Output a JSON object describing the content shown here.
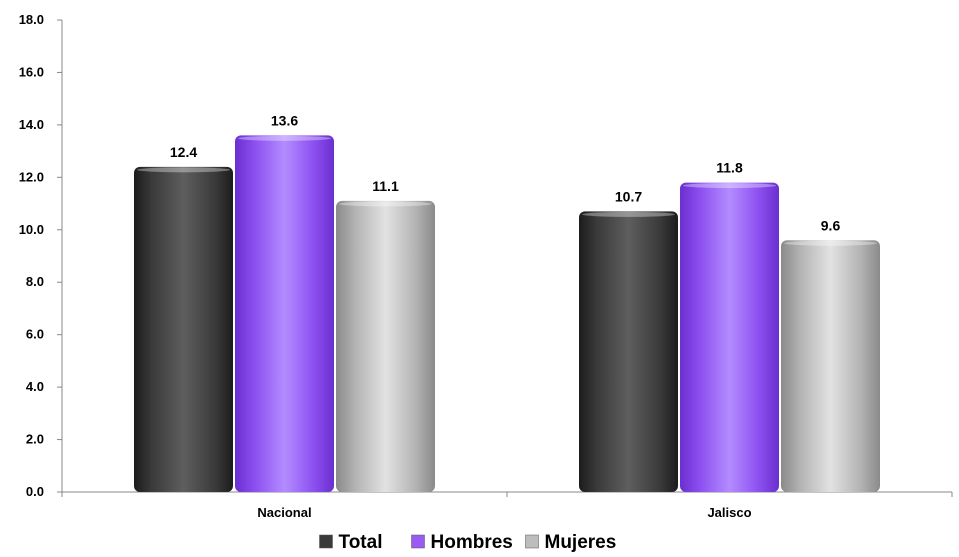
{
  "chart_data": {
    "type": "bar",
    "categories": [
      "Nacional",
      "Jalisco"
    ],
    "series": [
      {
        "name": "Total",
        "values": [
          12.4,
          10.7
        ],
        "color": "#4a4a4a"
      },
      {
        "name": "Hombres",
        "values": [
          13.6,
          11.8
        ],
        "color": "#9a5cf0"
      },
      {
        "name": "Mujeres",
        "values": [
          11.1,
          9.6
        ],
        "color": "#bdbdbd"
      }
    ],
    "ylim": [
      0,
      18
    ],
    "yticks": [
      "0.0",
      "2.0",
      "4.0",
      "6.0",
      "8.0",
      "10.0",
      "12.0",
      "14.0",
      "16.0",
      "18.0"
    ],
    "ytick_values": [
      0,
      2,
      4,
      6,
      8,
      10,
      12,
      14,
      16,
      18
    ],
    "data_labels": [
      [
        "12.4",
        "10.7"
      ],
      [
        "13.6",
        "11.8"
      ],
      [
        "11.1",
        "9.6"
      ]
    ],
    "grid": false,
    "legend_position": "bottom"
  }
}
